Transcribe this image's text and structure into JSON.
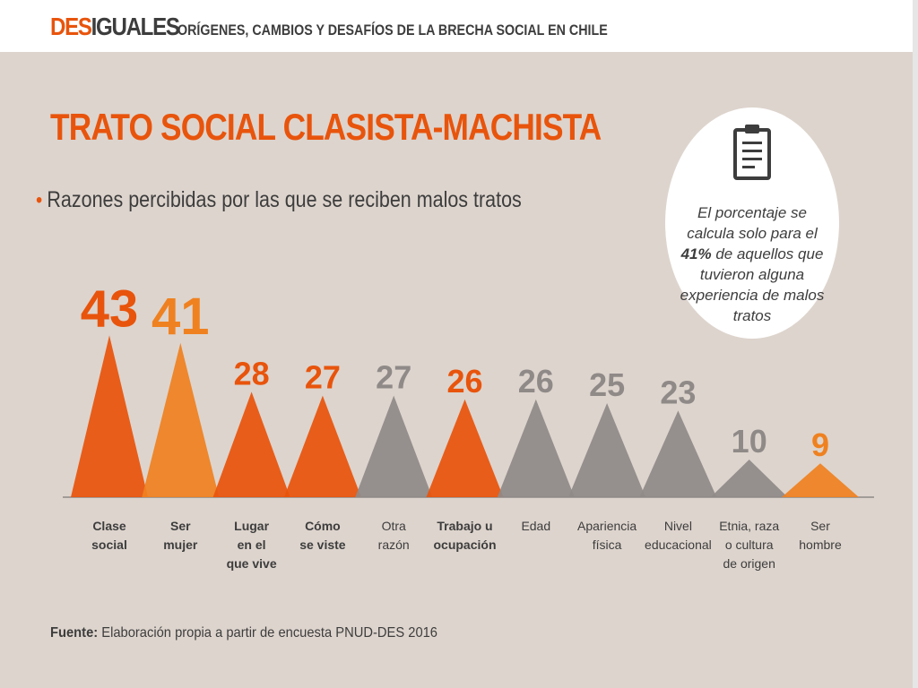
{
  "header": {
    "brand_part1": "DES",
    "brand_part2": "IGUALES",
    "subtitle": "ORÍGENES, CAMBIOS Y DESAFÍOS DE LA BRECHA SOCIAL EN CHILE"
  },
  "title": "TRATO SOCIAL CLASISTA-MACHISTA",
  "subtitle": "Razones percibidas por las que se reciben malos tratos",
  "note": {
    "text_before": "El porcentaje se calcula solo para el ",
    "highlight": "41%",
    "text_after": " de aquellos que tuvieron alguna experiencia de malos tratos",
    "icon": "clipboard-icon"
  },
  "source": {
    "label": "Fuente:",
    "text": " Elaboración propia a partir de encuesta PNUD-DES 2016"
  },
  "colors": {
    "dark_orange": "#e8540c",
    "light_orange": "#ef8120",
    "gray": "#8f8a88",
    "text_dark": "#3d3d3d",
    "background": "#ddd4cd"
  },
  "chart_data": {
    "type": "bar",
    "title": "Razones percibidas por las que se reciben malos tratos",
    "categories": [
      [
        "Clase",
        "social"
      ],
      [
        "Ser",
        "mujer"
      ],
      [
        "Lugar",
        "en el",
        "que vive"
      ],
      [
        "Cómo",
        "se viste"
      ],
      [
        "Otra",
        "razón"
      ],
      [
        "Trabajo u",
        "ocupación"
      ],
      [
        "Edad"
      ],
      [
        "Apariencia",
        "física"
      ],
      [
        "Nivel",
        "educacional"
      ],
      [
        "Etnia, raza",
        "o cultura",
        "de origen"
      ],
      [
        "Ser",
        "hombre"
      ]
    ],
    "bold_categories": [
      true,
      true,
      true,
      true,
      false,
      true,
      false,
      false,
      false,
      false,
      false
    ],
    "values": [
      43,
      41,
      28,
      27,
      27,
      26,
      26,
      25,
      23,
      10,
      9
    ],
    "color_groups": [
      "dark_orange",
      "light_orange",
      "dark_orange",
      "dark_orange",
      "gray",
      "dark_orange",
      "gray",
      "gray",
      "gray",
      "gray",
      "light_orange"
    ],
    "value_unit": "%",
    "grid": false,
    "legend": "none"
  }
}
